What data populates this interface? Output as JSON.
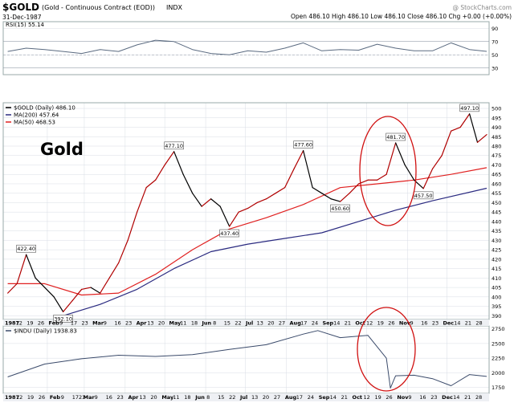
{
  "header": {
    "symbol": "$GOLD",
    "description": "(Gold - Continuous Contract (EOD))",
    "exchange": "INDX",
    "date": "31-Dec-1987",
    "quote": "Open 486.10  High 486.10  Low 486.10  Close 486.10  Chg +0.00 (+0.00%)",
    "watermark": "@ StockCharts.com"
  },
  "colors": {
    "price": "#000000",
    "up_segment": "#b00000",
    "ma200": "#2a2a80",
    "ma50": "#e02020",
    "rsi": "#5a6a80",
    "indu": "#3a4a6a",
    "circle": "#d01010",
    "grid": "#d8dde5"
  },
  "annotation": {
    "big_label": "Gold"
  },
  "chart_data": [
    {
      "type": "line",
      "title": "RSI(15) 55.14",
      "ylim": [
        20,
        100
      ],
      "reference_lines": [
        30,
        50,
        70
      ],
      "yticks": [
        30,
        50,
        70,
        90
      ],
      "x": [
        "1987-01-02",
        "1987-01-16",
        "1987-01-30",
        "1987-02-13",
        "1987-02-27",
        "1987-03-13",
        "1987-03-27",
        "1987-04-10",
        "1987-04-24",
        "1987-05-08",
        "1987-05-22",
        "1987-06-05",
        "1987-06-19",
        "1987-07-03",
        "1987-07-17",
        "1987-07-31",
        "1987-08-14",
        "1987-08-28",
        "1987-09-11",
        "1987-09-25",
        "1987-10-09",
        "1987-10-23",
        "1987-11-06",
        "1987-11-20",
        "1987-12-04",
        "1987-12-18",
        "1987-12-31"
      ],
      "values": [
        55,
        60,
        58,
        55,
        52,
        58,
        55,
        65,
        72,
        70,
        58,
        52,
        50,
        56,
        54,
        60,
        68,
        56,
        58,
        57,
        66,
        60,
        56,
        56,
        68,
        58,
        55.14
      ]
    },
    {
      "type": "line",
      "legend": [
        {
          "name": "$GOLD (Daily) 486.10",
          "color": "#000000"
        },
        {
          "name": "MA(200) 457.64",
          "color": "#2a2a80"
        },
        {
          "name": "MA(50) 468.53",
          "color": "#e02020"
        }
      ],
      "ylim": [
        388,
        503
      ],
      "yticks": [
        390,
        395,
        400,
        405,
        410,
        415,
        420,
        425,
        430,
        435,
        440,
        445,
        450,
        455,
        460,
        465,
        470,
        475,
        480,
        485,
        490,
        495,
        500
      ],
      "x_tick_labels": [
        "1987",
        "12",
        "19",
        "26",
        "Feb",
        "9",
        "17",
        "23",
        "Mar",
        "9",
        "16",
        "23",
        "Apr",
        "13",
        "20",
        "May",
        "11",
        "18",
        "Jun",
        "8",
        "15",
        "22",
        "Jul",
        "13",
        "20",
        "27",
        "Aug",
        "17",
        "24",
        "Sep",
        "14",
        "21",
        "Oct",
        "12",
        "19",
        "26",
        "Nov",
        "9",
        "16",
        "23",
        "Dec",
        "14",
        "21",
        "28"
      ],
      "series": [
        {
          "name": "$GOLD",
          "x": [
            "1987-01-02",
            "1987-01-09",
            "1987-01-16",
            "1987-01-23",
            "1987-01-30",
            "1987-02-06",
            "1987-02-13",
            "1987-02-20",
            "1987-02-27",
            "1987-03-06",
            "1987-03-13",
            "1987-03-20",
            "1987-03-27",
            "1987-04-03",
            "1987-04-10",
            "1987-04-17",
            "1987-04-24",
            "1987-05-01",
            "1987-05-08",
            "1987-05-15",
            "1987-05-22",
            "1987-05-29",
            "1987-06-05",
            "1987-06-12",
            "1987-06-19",
            "1987-06-26",
            "1987-07-03",
            "1987-07-10",
            "1987-07-17",
            "1987-07-24",
            "1987-07-31",
            "1987-08-07",
            "1987-08-14",
            "1987-08-21",
            "1987-08-28",
            "1987-09-04",
            "1987-09-11",
            "1987-09-18",
            "1987-09-25",
            "1987-10-02",
            "1987-10-09",
            "1987-10-16",
            "1987-10-23",
            "1987-10-30",
            "1987-11-06",
            "1987-11-13",
            "1987-11-20",
            "1987-11-27",
            "1987-12-04",
            "1987-12-11",
            "1987-12-18",
            "1987-12-24",
            "1987-12-31"
          ],
          "values": [
            402,
            407,
            422.4,
            410,
            405,
            400,
            392.1,
            398,
            404,
            405,
            402,
            410,
            418,
            430,
            445,
            458,
            462,
            470,
            477.1,
            465,
            455,
            448,
            452,
            448,
            437.4,
            445,
            447,
            450,
            452,
            455,
            458,
            468,
            477.6,
            458,
            455,
            452,
            450.6,
            455,
            460,
            462,
            462,
            465,
            481.7,
            470,
            462,
            457.5,
            468,
            475,
            488,
            490,
            497.1,
            482,
            486.1
          ]
        },
        {
          "name": "MA(200)",
          "x": [
            "1987-02-13",
            "1987-03-13",
            "1987-04-10",
            "1987-05-08",
            "1987-06-05",
            "1987-07-03",
            "1987-07-31",
            "1987-08-28",
            "1987-09-25",
            "1987-10-23",
            "1987-11-20",
            "1987-12-31"
          ],
          "values": [
            390,
            396,
            404,
            415,
            424,
            428,
            431,
            434,
            440,
            446,
            451,
            457.64
          ]
        },
        {
          "name": "MA(50)",
          "x": [
            "1987-01-02",
            "1987-01-30",
            "1987-02-27",
            "1987-03-27",
            "1987-04-24",
            "1987-05-22",
            "1987-06-19",
            "1987-07-17",
            "1987-08-14",
            "1987-09-11",
            "1987-10-09",
            "1987-11-06",
            "1987-12-04",
            "1987-12-31"
          ],
          "values": [
            407,
            407,
            401,
            402,
            412,
            425,
            436,
            442,
            449,
            458,
            460,
            462,
            465,
            468.53
          ]
        }
      ],
      "annotations": [
        "422.40",
        "392.10",
        "477.10",
        "437.40",
        "477.60",
        "450.60",
        "481.70",
        "457.50",
        "497.10"
      ]
    },
    {
      "type": "line",
      "legend": [
        {
          "name": "$INDU (Daily) 1938.83",
          "color": "#3a4a6a"
        }
      ],
      "ylim": [
        1650,
        2800
      ],
      "yticks": [
        1750,
        2000,
        2250,
        2500,
        2750
      ],
      "x_tick_labels": [
        "1987",
        "12",
        "19",
        "26",
        "Feb",
        "9",
        "1723",
        "Mar",
        "9",
        "16",
        "23",
        "Apr",
        "13",
        "20",
        "May",
        "11",
        "18",
        "Jun",
        "8",
        "15",
        "22",
        "Jul",
        "13",
        "20",
        "27",
        "Aug",
        "17",
        "24",
        "Sep",
        "14",
        "21",
        "Oct",
        "12",
        "19",
        "26",
        "Nov",
        "9",
        "16",
        "23",
        "Dec",
        "14",
        "21",
        "28"
      ],
      "series": [
        {
          "name": "$INDU",
          "x": [
            "1987-01-02",
            "1987-01-30",
            "1987-02-27",
            "1987-03-27",
            "1987-04-24",
            "1987-05-22",
            "1987-06-19",
            "1987-07-17",
            "1987-08-14",
            "1987-08-25",
            "1987-09-11",
            "1987-10-02",
            "1987-10-16",
            "1987-10-19",
            "1987-10-23",
            "1987-11-06",
            "1987-11-20",
            "1987-12-04",
            "1987-12-18",
            "1987-12-31"
          ],
          "values": [
            1930,
            2150,
            2240,
            2300,
            2280,
            2310,
            2400,
            2480,
            2660,
            2720,
            2600,
            2640,
            2250,
            1740,
            1950,
            1960,
            1900,
            1780,
            1970,
            1938.83
          ]
        }
      ]
    }
  ]
}
